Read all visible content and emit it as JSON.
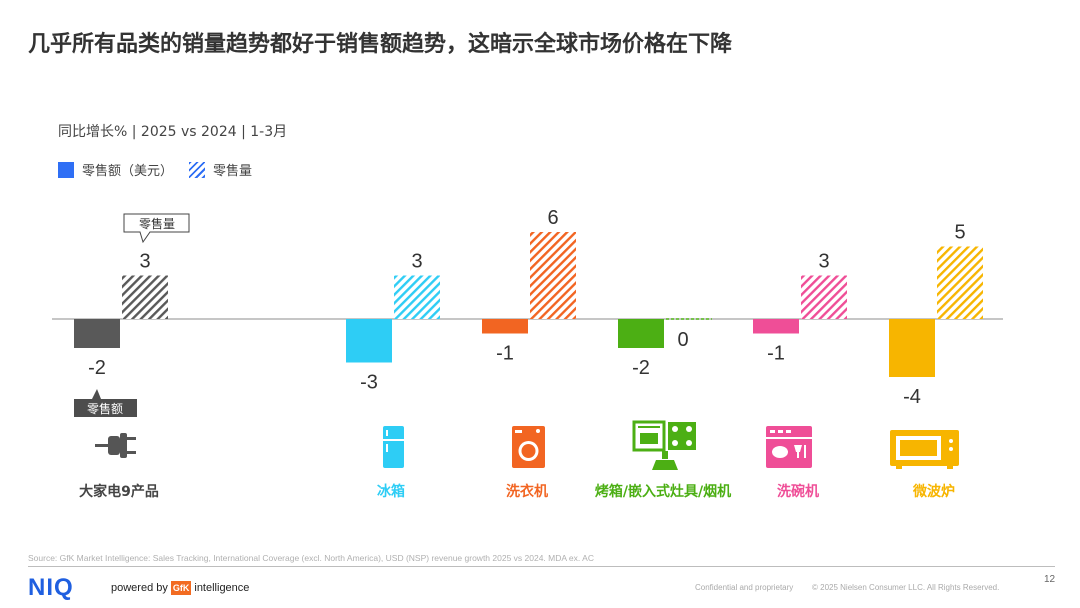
{
  "title": "几乎所有品类的销量趋势都好于销售额趋势，这暗示全球市场价格在下降",
  "subtitle": "同比增长% | 2025 vs 2024 | 1-3月",
  "legend": {
    "revenue_label": "零售额（美元）",
    "volume_label": "零售量"
  },
  "callouts": {
    "volume": "零售量",
    "revenue": "零售额"
  },
  "chart_data": {
    "type": "bar",
    "categories": [
      "大家电9产品",
      "冰箱",
      "洗衣机",
      "烤箱/嵌入式灶具/烟机",
      "洗碗机",
      "微波炉"
    ],
    "series": [
      {
        "name": "零售额（美元）",
        "values": [
          -2,
          -3,
          -1,
          -2,
          -1,
          -4
        ]
      },
      {
        "name": "零售量",
        "values": [
          3,
          3,
          6,
          0,
          3,
          5
        ]
      }
    ],
    "colors": [
      "#595959",
      "#2ecdf5",
      "#f26522",
      "#4caf14",
      "#ef4e97",
      "#f7b500"
    ],
    "icons": [
      "plug-icon",
      "fridge-icon",
      "washing-machine-icon",
      "oven-hob-hood-icon",
      "dishwasher-icon",
      "microwave-icon"
    ],
    "ylim": [
      -5,
      7
    ],
    "grid": false,
    "legend_position": "top-left"
  },
  "footer": {
    "source": "Source: GfK Market Intelligence: Sales Tracking, International Coverage (excl. North America), USD (NSP) revenue growth 2025 vs 2024.   MDA ex. AC",
    "logo": "NIQ",
    "powered_by": "powered by",
    "gfk": "GfK",
    "intelligence": "intelligence",
    "confidential": "Confidential and proprietary",
    "copyright": "© 2025 Nielsen Consumer LLC. All Rights Reserved.",
    "page": "12"
  }
}
